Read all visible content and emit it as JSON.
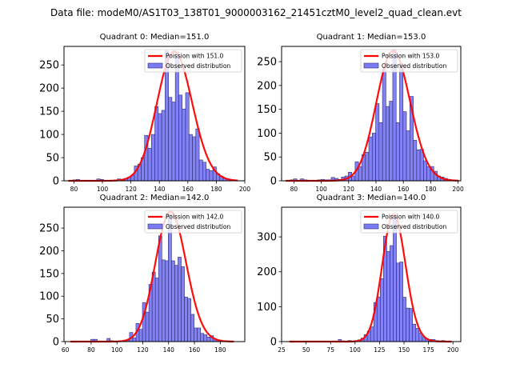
{
  "figure": {
    "suptitle": "Data file: modeM0/AS1T03_138T01_9000003162_21451cztM0_level2_quad_clean.evt"
  },
  "colors": {
    "bar_fill": "#7b7bf5",
    "bar_edge": "#2c2c6e",
    "poisson_line": "#ff0000"
  },
  "chart_data": [
    {
      "type": "bar",
      "title": "Quadrant 0: Median=151.0",
      "xlabel": "",
      "ylabel": "",
      "xlim": [
        73,
        200
      ],
      "ylim": [
        0,
        290
      ],
      "xticks": [
        80,
        100,
        120,
        140,
        160,
        180,
        200
      ],
      "yticks": [
        0,
        50,
        100,
        150,
        200,
        250
      ],
      "grid": false,
      "legend": {
        "placement": "top-right",
        "entries": [
          "Poission with 151.0",
          "Observed distribution"
        ]
      },
      "bin_width": 2.4,
      "series": [
        {
          "name": "Observed distribution",
          "kind": "histogram",
          "x": [
            78,
            80.4,
            82.8,
            85.2,
            87.6,
            90,
            92.4,
            94.8,
            97.2,
            99.6,
            102,
            104.4,
            106.8,
            109.2,
            111.6,
            114,
            116.4,
            118.8,
            121.2,
            123.6,
            126,
            128.4,
            130.8,
            133.2,
            135.6,
            138,
            140.4,
            142.8,
            145.2,
            147.6,
            150,
            152.4,
            154.8,
            157.2,
            159.6,
            162,
            164.4,
            166.8,
            169.2,
            171.6,
            174,
            176.4,
            178.8,
            181.2,
            183.6,
            186,
            188.4,
            190.8,
            193.2
          ],
          "values": [
            1,
            2,
            3,
            1,
            1,
            1,
            1,
            1,
            4,
            3,
            1,
            1,
            1,
            2,
            4,
            3,
            5,
            8,
            12,
            32,
            36,
            50,
            98,
            70,
            100,
            160,
            145,
            152,
            280,
            180,
            170,
            277,
            185,
            155,
            190,
            100,
            95,
            112,
            45,
            40,
            25,
            22,
            30,
            15,
            10,
            5,
            3,
            2,
            1
          ]
        },
        {
          "name": "Poission with 151.0",
          "kind": "line",
          "mean": 151.0,
          "peak": 279
        }
      ]
    },
    {
      "type": "bar",
      "title": "Quadrant 1: Median=153.0",
      "xlabel": "",
      "ylabel": "",
      "xlim": [
        71,
        202
      ],
      "ylim": [
        0,
        282
      ],
      "xticks": [
        80,
        100,
        120,
        140,
        160,
        180,
        200
      ],
      "yticks": [
        0,
        50,
        100,
        150,
        200,
        250
      ],
      "grid": false,
      "legend": {
        "placement": "top-right",
        "entries": [
          "Poission with 153.0",
          "Observed distribution"
        ]
      },
      "bin_width": 2.5,
      "series": [
        {
          "name": "Observed distribution",
          "kind": "histogram",
          "x": [
            76,
            78.5,
            81,
            83.5,
            86,
            88.5,
            91,
            93.5,
            96,
            98.5,
            101,
            103.5,
            106,
            108.5,
            111,
            113.5,
            116,
            118.5,
            121,
            123.5,
            126,
            128.5,
            131,
            133.5,
            136,
            138.5,
            141,
            143.5,
            146,
            148.5,
            151,
            153.5,
            156,
            158.5,
            161,
            163.5,
            166,
            168.5,
            171,
            173.5,
            176,
            178.5,
            181,
            183.5,
            186,
            188.5,
            191,
            193.5,
            196,
            198.5
          ],
          "values": [
            1,
            2,
            4,
            1,
            4,
            2,
            1,
            1,
            1,
            2,
            3,
            2,
            2,
            7,
            5,
            3,
            8,
            10,
            18,
            10,
            40,
            30,
            55,
            60,
            92,
            100,
            162,
            122,
            230,
            156,
            167,
            275,
            122,
            246,
            145,
            105,
            177,
            85,
            65,
            66,
            42,
            30,
            30,
            20,
            10,
            8,
            5,
            3,
            1,
            1
          ]
        },
        {
          "name": "Poission with 153.0",
          "kind": "line",
          "mean": 153.0,
          "peak": 272
        }
      ]
    },
    {
      "type": "bar",
      "title": "Quadrant 2: Median=142.0",
      "xlabel": "",
      "ylabel": "",
      "xlim": [
        59,
        199
      ],
      "ylim": [
        0,
        296
      ],
      "xticks": [
        60,
        80,
        100,
        120,
        140,
        160,
        180
      ],
      "yticks": [
        0,
        50,
        100,
        150,
        200,
        250
      ],
      "grid": false,
      "legend": {
        "placement": "top-right",
        "entries": [
          "Poission with 142.0",
          "Observed distribution"
        ]
      },
      "bin_width": 2.5,
      "series": [
        {
          "name": "Observed distribution",
          "kind": "histogram",
          "x": [
            66,
            68.5,
            71,
            73.5,
            76,
            78.5,
            81,
            83.5,
            86,
            88.5,
            91,
            93.5,
            96,
            98.5,
            101,
            103.5,
            106,
            108.5,
            111,
            113.5,
            116,
            118.5,
            121,
            123.5,
            126,
            128.5,
            131,
            133.5,
            136,
            138.5,
            141,
            143.5,
            146,
            148.5,
            151,
            153.5,
            156,
            158.5,
            161,
            163.5,
            166,
            168.5,
            171,
            173.5,
            176,
            178.5,
            181,
            183.5,
            186,
            188.5
          ],
          "values": [
            1,
            1,
            1,
            1,
            1,
            1,
            5,
            5,
            1,
            1,
            1,
            7,
            2,
            1,
            1,
            1,
            2,
            3,
            20,
            8,
            40,
            27,
            86,
            65,
            126,
            153,
            140,
            233,
            180,
            178,
            280,
            178,
            168,
            186,
            165,
            98,
            95,
            60,
            30,
            30,
            18,
            15,
            10,
            13,
            6,
            3,
            2,
            1,
            1,
            1
          ]
        },
        {
          "name": "Poission with 142.0",
          "kind": "line",
          "mean": 142.0,
          "peak": 286
        }
      ]
    },
    {
      "type": "bar",
      "title": "Quadrant 3: Median=140.0",
      "xlabel": "",
      "ylabel": "",
      "xlim": [
        25,
        208
      ],
      "ylim": [
        0,
        385
      ],
      "xticks": [
        25,
        50,
        75,
        100,
        125,
        150,
        175,
        200
      ],
      "yticks": [
        0,
        100,
        200,
        300
      ],
      "grid": false,
      "legend": {
        "placement": "top-right",
        "entries": [
          "Poission with 140.0",
          "Observed distribution"
        ]
      },
      "bin_width": 3.3,
      "series": [
        {
          "name": "Observed distribution",
          "kind": "histogram",
          "x": [
            35,
            38.3,
            41.6,
            44.9,
            48.2,
            51.5,
            54.8,
            58.1,
            61.4,
            64.7,
            68,
            71.3,
            74.6,
            77.9,
            81.2,
            84.5,
            87.8,
            91.1,
            94.4,
            97.7,
            101,
            104.3,
            107.6,
            110.9,
            114.2,
            117.5,
            120.8,
            124.1,
            127.4,
            130.7,
            134,
            137.3,
            140.6,
            143.9,
            147.2,
            150.5,
            153.8,
            157.1,
            160.4,
            163.7,
            167,
            170.3,
            173.6,
            176.9,
            180.2,
            183.5,
            186.8,
            190.1,
            193.4,
            196.7
          ],
          "values": [
            1,
            1,
            1,
            1,
            1,
            1,
            1,
            1,
            1,
            1,
            1,
            1,
            1,
            1,
            1,
            6,
            2,
            1,
            3,
            2,
            3,
            5,
            10,
            20,
            30,
            42,
            112,
            128,
            180,
            302,
            258,
            275,
            360,
            225,
            228,
            127,
            96,
            95,
            50,
            38,
            25,
            12,
            8,
            6,
            6,
            3,
            2,
            3,
            1,
            1
          ]
        },
        {
          "name": "Poission with 140.0",
          "kind": "line",
          "mean": 140.0,
          "peak": 365
        }
      ]
    }
  ]
}
